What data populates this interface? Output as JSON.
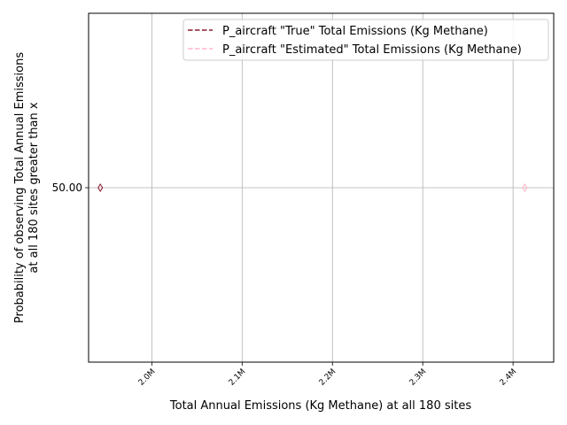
{
  "chart_data": {
    "type": "line",
    "xlabel": "Total Annual Emissions (Kg Methane) at all 180 sites",
    "ylabel_line1": "Probability of observing Total Annual Emissions",
    "ylabel_line2": "at all 180 sites greater than x",
    "xlim": [
      1.93,
      2.445
    ],
    "ylim": [
      0,
      100
    ],
    "x_ticks": [
      2.0,
      2.1,
      2.2,
      2.3,
      2.4
    ],
    "x_tick_labels": [
      "2.0M",
      "2.1M",
      "2.2M",
      "2.3M",
      "2.4M"
    ],
    "x_unit_note": "millions",
    "y_ticks": [
      50
    ],
    "y_tick_labels": [
      "50.00"
    ],
    "grid": true,
    "legend_position": "top-right",
    "series": [
      {
        "name": "P_aircraft \"True\" Total Emissions (Kg Methane)",
        "color": "#8b1a2e",
        "dash": "dashed",
        "x": [
          1.943
        ],
        "y": [
          50
        ]
      },
      {
        "name": "P_aircraft \"Estimated\" Total Emissions (Kg Methane)",
        "color": "#ffb6c8",
        "dash": "dashed",
        "x": [
          2.413
        ],
        "y": [
          50
        ]
      }
    ]
  }
}
